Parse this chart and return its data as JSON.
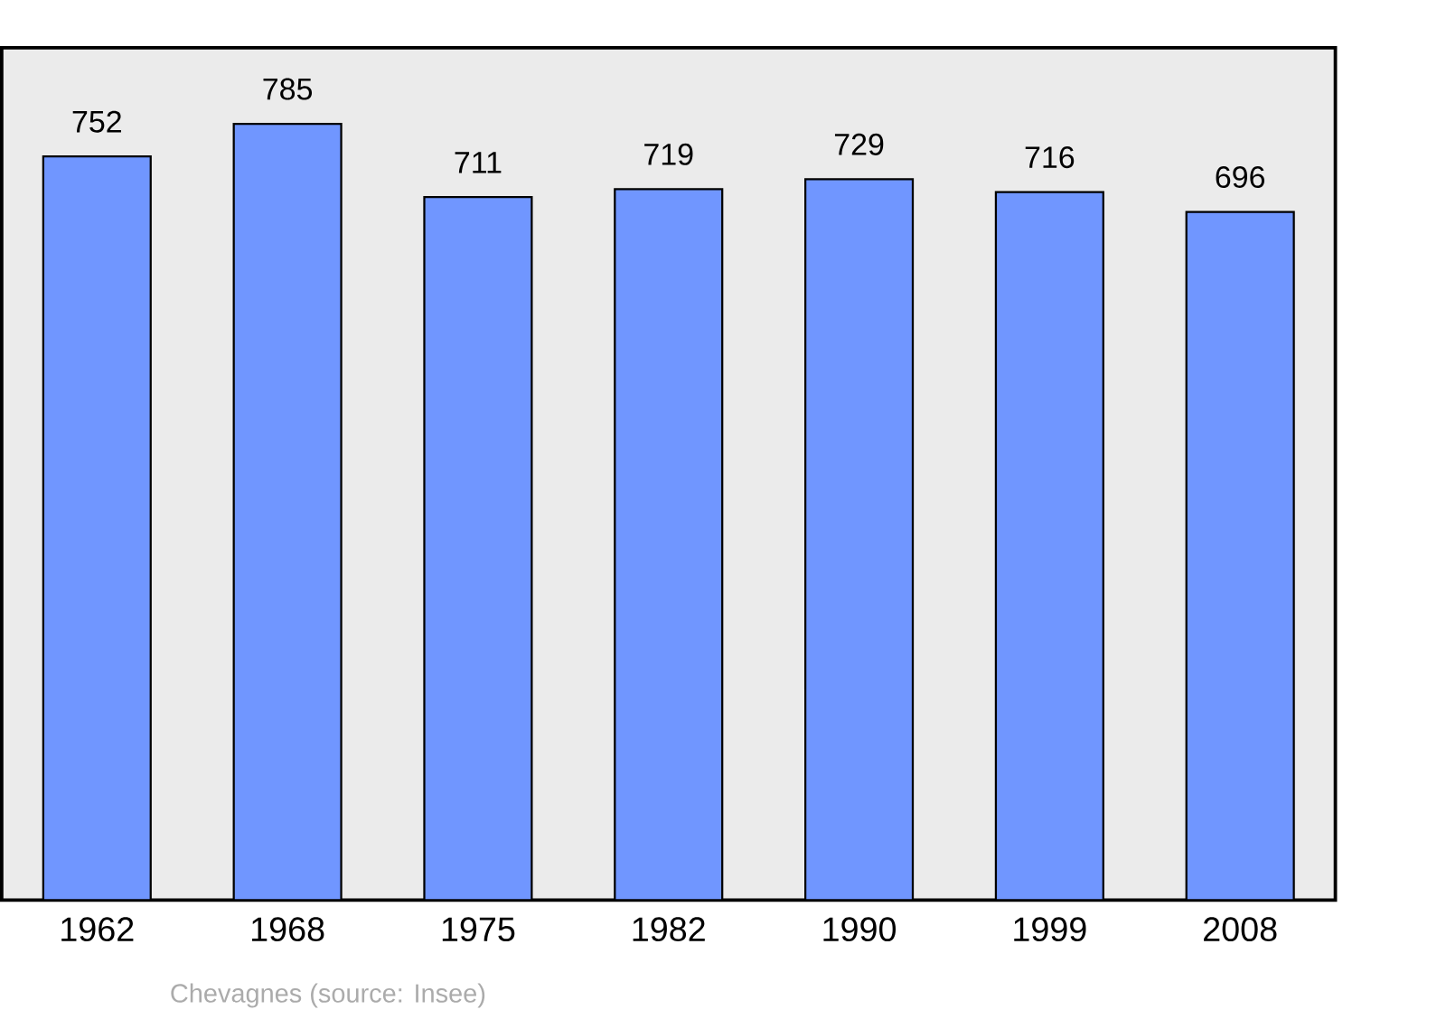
{
  "chart_data": {
    "type": "bar",
    "categories": [
      "1962",
      "1968",
      "1975",
      "1982",
      "1990",
      "1999",
      "2008"
    ],
    "values": [
      752,
      785,
      711,
      719,
      729,
      716,
      696
    ],
    "color": "#7096ff",
    "ylim": [
      0,
      862
    ],
    "data_labels": true,
    "annotations": [
      "Chevagnes    (source: Insee)"
    ]
  }
}
